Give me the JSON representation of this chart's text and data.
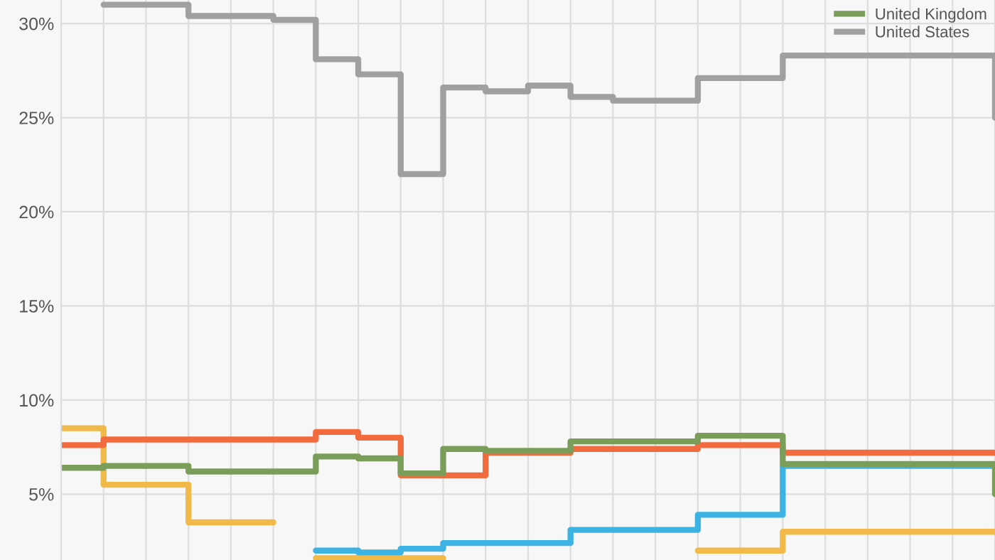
{
  "chart_data": {
    "type": "step",
    "categories": [
      null,
      null,
      null,
      null,
      null,
      null,
      null,
      null,
      null,
      null,
      null,
      null,
      null,
      null,
      null,
      null,
      null,
      null,
      null,
      null,
      null,
      null,
      null
    ],
    "series": [
      {
        "color": "#f0b94a",
        "values": [
          8.5,
          5.5,
          5.5,
          3.5,
          3.5,
          null,
          1.6,
          1.6,
          1.6,
          null,
          null,
          null,
          null,
          null,
          null,
          2.0,
          2.0,
          3.0,
          3.0,
          3.0,
          3.0,
          3.0,
          3.0
        ]
      },
      {
        "color": "#3db3e3",
        "values": [
          null,
          null,
          null,
          null,
          null,
          null,
          2.0,
          1.9,
          2.1,
          2.4,
          2.4,
          2.4,
          3.1,
          3.1,
          3.1,
          3.9,
          3.9,
          6.5,
          6.5,
          6.5,
          6.5,
          6.5,
          6.5
        ]
      },
      {
        "color": "#f26b3e",
        "values": [
          7.6,
          7.9,
          7.9,
          7.9,
          7.9,
          7.9,
          8.3,
          8.0,
          6.0,
          6.0,
          7.2,
          7.2,
          7.4,
          7.4,
          7.4,
          7.6,
          7.6,
          7.2,
          7.2,
          7.2,
          7.2,
          7.2,
          7.2
        ]
      },
      {
        "name": "United Kingdom",
        "color": "#7a9e5a",
        "values": [
          6.4,
          6.5,
          6.5,
          6.2,
          6.2,
          6.2,
          7.0,
          6.9,
          6.1,
          7.4,
          7.3,
          7.3,
          7.8,
          7.8,
          7.8,
          8.1,
          8.1,
          6.6,
          6.6,
          6.6,
          6.6,
          6.6,
          5.0
        ]
      },
      {
        "name": "United States",
        "color": "#a0a0a0",
        "values": [
          null,
          31.0,
          31.0,
          30.4,
          30.4,
          30.2,
          28.1,
          27.3,
          22.0,
          26.6,
          26.4,
          26.7,
          26.1,
          25.9,
          25.9,
          27.1,
          27.1,
          28.3,
          28.3,
          28.3,
          28.3,
          28.3,
          25.0
        ]
      }
    ],
    "ylim": [
      1.5,
      31.25
    ],
    "yticks": [
      {
        "value": 5,
        "label": "5%"
      },
      {
        "value": 10,
        "label": "10%"
      },
      {
        "value": 15,
        "label": "15%"
      },
      {
        "value": 20,
        "label": "20%"
      },
      {
        "value": 25,
        "label": "25%"
      },
      {
        "value": 30,
        "label": "30%"
      }
    ],
    "grid": true,
    "legend": "top right",
    "tick_labels": "y",
    "line_style": "solid",
    "marker": "none"
  }
}
